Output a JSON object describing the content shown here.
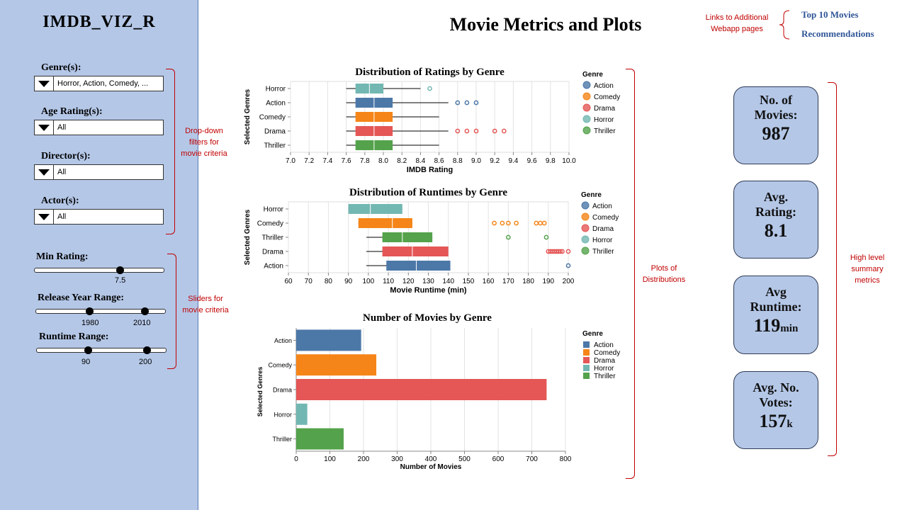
{
  "sidebar": {
    "app_title": "IMDB_VIZ_R",
    "filters": {
      "genre": {
        "label": "Genre(s):",
        "value": "Horror, Action, Comedy, ..."
      },
      "age_rating": {
        "label": "Age Rating(s):",
        "value": "All"
      },
      "director": {
        "label": "Director(s):",
        "value": "All"
      },
      "actor": {
        "label": "Actor(s):",
        "value": "All"
      }
    },
    "sliders": {
      "min_rating": {
        "label": "Min Rating:",
        "value": "7.5",
        "fraction": 0.65
      },
      "release_year": {
        "label": "Release  Year Range:",
        "low": "1980",
        "high": "2010",
        "low_fraction": 0.41,
        "high_fraction": 0.83
      },
      "runtime": {
        "label": "Runtime Range:",
        "low": "90",
        "high": "200",
        "low_fraction": 0.39,
        "high_fraction": 0.84
      }
    }
  },
  "annotations": {
    "dropdowns": "Drop-down filters for movie criteria",
    "sliders": "Sliders for movie criteria",
    "links": "Links to Additional Webapp pages",
    "plots": "Plots of Distributions",
    "metrics": "High level summary metrics"
  },
  "header": {
    "title": "Movie Metrics and Plots"
  },
  "nav": {
    "top10": "Top 10 Movies",
    "recommendations": "Recommendations"
  },
  "metrics": {
    "movies": {
      "label_1": "No. of",
      "label_2": "Movies:",
      "value": "987"
    },
    "rating": {
      "label_1": "Avg.",
      "label_2": "Rating:",
      "value": "8.1"
    },
    "runtime": {
      "label_1": "Avg",
      "label_2": "Runtime:",
      "value": "119",
      "unit": "min"
    },
    "votes": {
      "label_1": "Avg. No.",
      "label_2": "Votes:",
      "value": "157",
      "unit": "k"
    }
  },
  "colors": {
    "Action": "#4c78a8",
    "Comedy": "#f58518",
    "Drama": "#e45756",
    "Horror": "#72b7b2",
    "Thriller": "#54a24b",
    "accent_red": "#c00000",
    "sidebar_bg": "#b4c7e7"
  },
  "chart_data": [
    {
      "type": "boxplot",
      "title": "Distribution of Ratings by Genre",
      "xlabel": "IMDB Rating",
      "ylabel": "Selected Genres",
      "xlim": [
        7.0,
        10.0
      ],
      "xticks": [
        "7.0",
        "7.2",
        "7.4",
        "7.6",
        "7.8",
        "8.0",
        "8.2",
        "8.4",
        "8.6",
        "8.8",
        "9.0",
        "9.2",
        "9.4",
        "9.6",
        "9.8",
        "10.0"
      ],
      "legend_title": "Genre",
      "legend": [
        "Action",
        "Comedy",
        "Drama",
        "Horror",
        "Thriller"
      ],
      "categories": [
        "Horror",
        "Action",
        "Comedy",
        "Drama",
        "Thriller"
      ],
      "series": [
        {
          "name": "Horror",
          "min": 7.6,
          "q1": 7.7,
          "median": 7.85,
          "q3": 8.0,
          "max": 8.4,
          "outliers": [
            8.5
          ]
        },
        {
          "name": "Action",
          "min": 7.6,
          "q1": 7.7,
          "median": 7.9,
          "q3": 8.1,
          "max": 8.7,
          "outliers": [
            8.8,
            8.9,
            9.0
          ]
        },
        {
          "name": "Comedy",
          "min": 7.6,
          "q1": 7.7,
          "median": 7.9,
          "q3": 8.1,
          "max": 8.6,
          "outliers": []
        },
        {
          "name": "Drama",
          "min": 7.6,
          "q1": 7.7,
          "median": 7.9,
          "q3": 8.1,
          "max": 8.7,
          "outliers": [
            8.8,
            8.9,
            9.0,
            9.2,
            9.3
          ]
        },
        {
          "name": "Thriller",
          "min": 7.6,
          "q1": 7.7,
          "median": 7.9,
          "q3": 8.1,
          "max": 8.6,
          "outliers": []
        }
      ]
    },
    {
      "type": "boxplot",
      "title": "Distribution of Runtimes by Genre",
      "xlabel": "Movie Runtime (min)",
      "ylabel": "Selected Genres",
      "xlim": [
        60,
        200
      ],
      "xticks": [
        "60",
        "70",
        "80",
        "90",
        "100",
        "110",
        "120",
        "130",
        "140",
        "150",
        "160",
        "170",
        "180",
        "190",
        "200"
      ],
      "legend_title": "Genre",
      "legend": [
        "Action",
        "Comedy",
        "Drama",
        "Horror",
        "Thriller"
      ],
      "categories": [
        "Horror",
        "Comedy",
        "Thriller",
        "Drama",
        "Action"
      ],
      "series": [
        {
          "name": "Horror",
          "min": 90,
          "q1": 90,
          "median": 101,
          "q3": 117,
          "max": 117,
          "outliers": []
        },
        {
          "name": "Comedy",
          "min": 95,
          "q1": 95,
          "median": 112,
          "q3": 122,
          "max": 122,
          "outliers": [
            163,
            167,
            170,
            174,
            184,
            186,
            188
          ]
        },
        {
          "name": "Thriller",
          "min": 99,
          "q1": 107,
          "median": 117,
          "q3": 132,
          "max": 132,
          "outliers": [
            170,
            189
          ]
        },
        {
          "name": "Drama",
          "min": 99,
          "q1": 107,
          "median": 122,
          "q3": 140,
          "max": 140,
          "outliers": [
            190,
            191,
            192,
            193,
            194,
            195,
            196,
            197,
            200
          ]
        },
        {
          "name": "Action",
          "min": 99,
          "q1": 109,
          "median": 124,
          "q3": 141,
          "max": 141,
          "outliers": [
            200
          ]
        }
      ]
    },
    {
      "type": "bar",
      "orientation": "horizontal",
      "title": "Number of Movies by Genre",
      "xlabel": "Number of Movies",
      "ylabel": "Selected Genres",
      "xlim": [
        0,
        800
      ],
      "xticks": [
        "0",
        "100",
        "200",
        "300",
        "400",
        "500",
        "600",
        "700",
        "800"
      ],
      "legend_title": "Genre",
      "legend": [
        "Action",
        "Comedy",
        "Drama",
        "Horror",
        "Thriller"
      ],
      "categories": [
        "Action",
        "Comedy",
        "Drama",
        "Horror",
        "Thriller"
      ],
      "values": [
        193,
        238,
        744,
        33,
        141
      ]
    }
  ]
}
